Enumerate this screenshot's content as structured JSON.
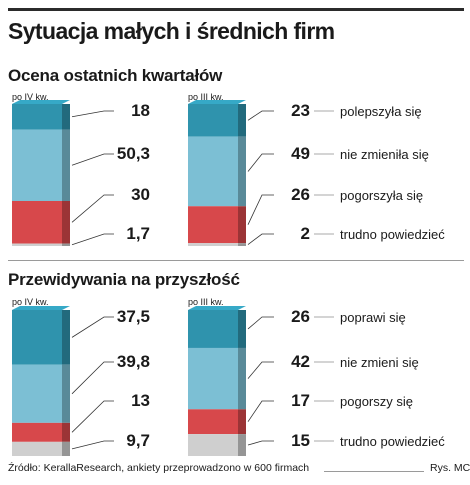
{
  "title": "Sytuacja małych i średnich firm",
  "source": "Źródło: KerallaResearch, ankiety przeprowadzono w 600 firmach",
  "author": "Rys. MC",
  "colors": {
    "top": "#2f93ad",
    "middle": "#7cbfd4",
    "bottom": "#d7484b",
    "rest": "#cfcfcf"
  },
  "sections": [
    {
      "title": "Ocena ostatnich kwartałów",
      "categories": [
        "polepszyła się",
        "nie zmieniła się",
        "pogorszyła się",
        "trudno powiedzieć"
      ],
      "left_period": "po IV kw.",
      "right_period": "po III kw."
    },
    {
      "title": "Przewidywania na przyszłość",
      "categories": [
        "poprawi się",
        "nie zmieni się",
        "pogorszy się",
        "trudno powiedzieć"
      ],
      "left_period": "po IV kw.",
      "right_period": "po III kw."
    }
  ],
  "chart_data": [
    {
      "type": "bar",
      "title": "Ocena ostatnich kwartałów",
      "stacked": true,
      "categories": [
        "po IV kw.",
        "po III kw."
      ],
      "series": [
        {
          "name": "polepszyła się",
          "values": [
            18,
            23
          ]
        },
        {
          "name": "nie zmieniła się",
          "values": [
            50.3,
            49
          ]
        },
        {
          "name": "pogorszyła się",
          "values": [
            30,
            26
          ]
        },
        {
          "name": "trudno powiedzieć",
          "values": [
            1.7,
            2
          ]
        }
      ],
      "value_labels": [
        [
          "18",
          "50,3",
          "30",
          "1,7"
        ],
        [
          "23",
          "49",
          "26",
          "2"
        ]
      ]
    },
    {
      "type": "bar",
      "title": "Przewidywania na przyszłość",
      "stacked": true,
      "categories": [
        "po IV kw.",
        "po III kw."
      ],
      "series": [
        {
          "name": "poprawi się",
          "values": [
            37.5,
            26
          ]
        },
        {
          "name": "nie zmieni się",
          "values": [
            39.8,
            42
          ]
        },
        {
          "name": "pogorszy się",
          "values": [
            13,
            17
          ]
        },
        {
          "name": "trudno powiedzieć",
          "values": [
            9.7,
            15
          ]
        }
      ],
      "value_labels": [
        [
          "37,5",
          "39,8",
          "13",
          "9,7"
        ],
        [
          "26",
          "42",
          "17",
          "15"
        ]
      ]
    }
  ]
}
